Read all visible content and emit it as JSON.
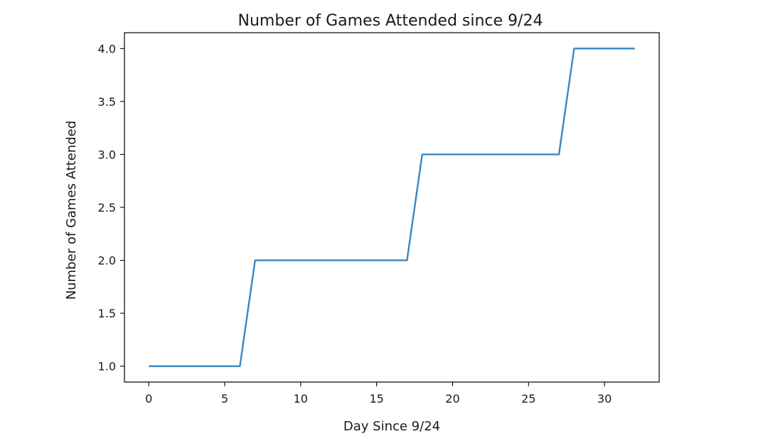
{
  "chart_data": {
    "type": "line",
    "title": "Number of Games Attended since 9/24",
    "xlabel": "Day Since 9/24",
    "ylabel": "Number of Games Attended",
    "xlim": [
      -1.6,
      33.6
    ],
    "ylim": [
      0.85,
      4.15
    ],
    "xticks": [
      0,
      5,
      10,
      15,
      20,
      25,
      30
    ],
    "yticks": [
      1.0,
      1.5,
      2.0,
      2.5,
      3.0,
      3.5,
      4.0
    ],
    "xtick_labels": [
      "0",
      "5",
      "10",
      "15",
      "20",
      "25",
      "30"
    ],
    "ytick_labels": [
      "1.0",
      "1.5",
      "2.0",
      "2.5",
      "3.0",
      "3.5",
      "4.0"
    ],
    "grid": false,
    "legend": false,
    "series": [
      {
        "color": "#3a86c0",
        "x": [
          0,
          1,
          2,
          3,
          4,
          5,
          6,
          7,
          8,
          9,
          10,
          11,
          12,
          13,
          14,
          15,
          16,
          17,
          18,
          19,
          20,
          21,
          22,
          23,
          24,
          25,
          26,
          27,
          28,
          29,
          30,
          31,
          32
        ],
        "y": [
          1,
          1,
          1,
          1,
          1,
          1,
          1,
          2,
          2,
          2,
          2,
          2,
          2,
          2,
          2,
          2,
          2,
          2,
          3,
          3,
          3,
          3,
          3,
          3,
          3,
          3,
          3,
          3,
          4,
          4,
          4,
          4,
          4
        ]
      }
    ]
  }
}
